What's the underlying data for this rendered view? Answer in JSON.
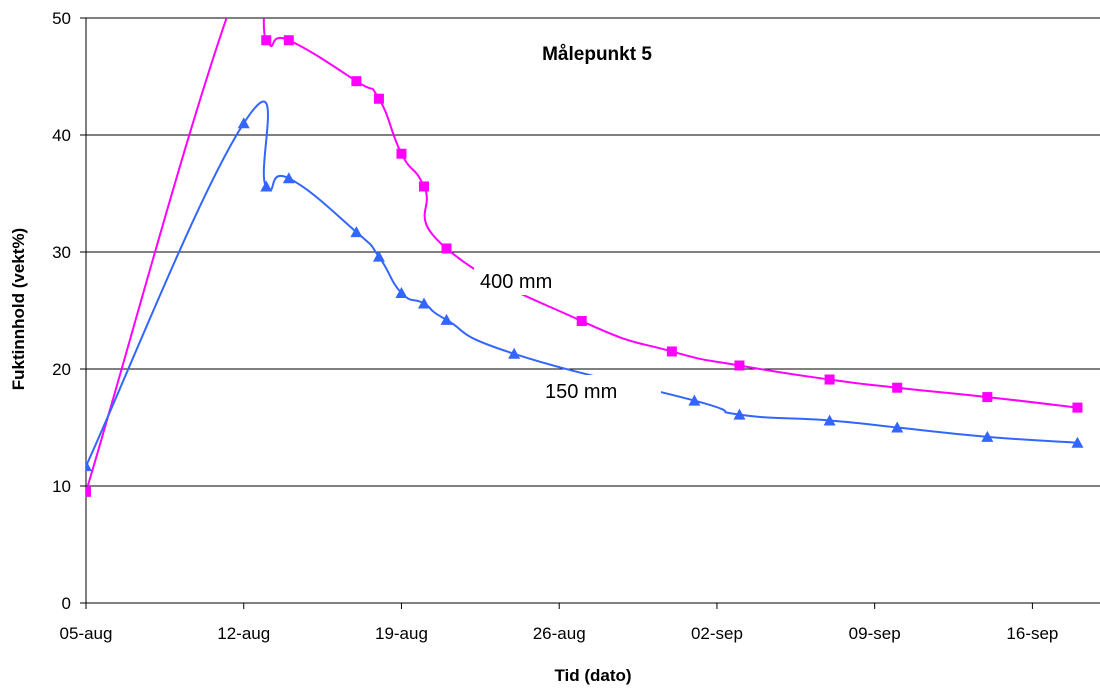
{
  "chart_data": {
    "type": "line",
    "title": "Målepunkt 5",
    "xlabel": "Tid (dato)",
    "ylabel": "Fuktinnhold (vekt%)",
    "ylim": [
      0,
      50
    ],
    "yticks": [
      0,
      10,
      20,
      30,
      40,
      50
    ],
    "x_range": [
      "2023-08-05",
      "2023-09-19"
    ],
    "xticks": [
      {
        "date": "2023-08-05",
        "label": "05-aug"
      },
      {
        "date": "2023-08-12",
        "label": "12-aug"
      },
      {
        "date": "2023-08-19",
        "label": "19-aug"
      },
      {
        "date": "2023-08-26",
        "label": "26-aug"
      },
      {
        "date": "2023-09-02",
        "label": "02-sep"
      },
      {
        "date": "2023-09-09",
        "label": "09-sep"
      },
      {
        "date": "2023-09-16",
        "label": "16-sep"
      }
    ],
    "grid": "horizontal",
    "series": [
      {
        "name": "400 mm",
        "color": "#ff00ff",
        "marker": "square",
        "points": [
          {
            "x": "2023-08-05",
            "y": 9.5
          },
          {
            "x": "2023-08-12",
            "y": 54
          },
          {
            "x": "2023-08-13",
            "y": 48.1
          },
          {
            "x": "2023-08-14",
            "y": 48.1
          },
          {
            "x": "2023-08-17",
            "y": 44.6
          },
          {
            "x": "2023-08-18",
            "y": 43.1
          },
          {
            "x": "2023-08-19",
            "y": 38.4
          },
          {
            "x": "2023-08-20",
            "y": 35.6
          },
          {
            "x": "2023-08-21",
            "y": 30.3
          },
          {
            "x": "2023-08-27",
            "y": 24.1
          },
          {
            "x": "2023-08-31",
            "y": 21.5
          },
          {
            "x": "2023-09-03",
            "y": 20.3
          },
          {
            "x": "2023-09-07",
            "y": 19.1
          },
          {
            "x": "2023-09-10",
            "y": 18.4
          },
          {
            "x": "2023-09-14",
            "y": 17.6
          },
          {
            "x": "2023-09-18",
            "y": 16.7
          }
        ]
      },
      {
        "name": "150 mm",
        "color": "#3366ff",
        "marker": "triangle",
        "points": [
          {
            "x": "2023-08-05",
            "y": 11.7
          },
          {
            "x": "2023-08-12",
            "y": 41
          },
          {
            "x": "2023-08-13",
            "y": 35.6
          },
          {
            "x": "2023-08-14",
            "y": 36.3
          },
          {
            "x": "2023-08-17",
            "y": 31.7
          },
          {
            "x": "2023-08-18",
            "y": 29.6
          },
          {
            "x": "2023-08-19",
            "y": 26.5
          },
          {
            "x": "2023-08-20",
            "y": 25.6
          },
          {
            "x": "2023-08-21",
            "y": 24.2
          },
          {
            "x": "2023-08-24",
            "y": 21.3
          },
          {
            "x": "2023-09-01",
            "y": 17.3
          },
          {
            "x": "2023-09-03",
            "y": 16.1
          },
          {
            "x": "2023-09-07",
            "y": 15.6
          },
          {
            "x": "2023-09-10",
            "y": 15
          },
          {
            "x": "2023-09-14",
            "y": 14.2
          },
          {
            "x": "2023-09-18",
            "y": 13.7
          }
        ]
      }
    ]
  }
}
